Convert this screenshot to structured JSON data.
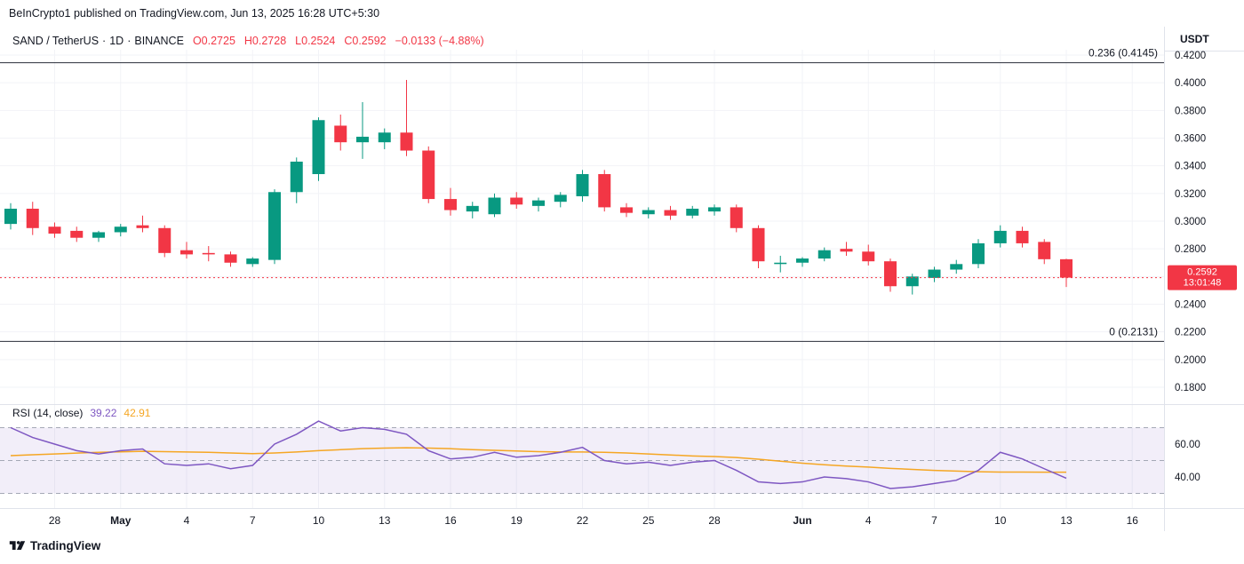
{
  "header": {
    "published_line": "BeInCrypto1 published on TradingView.com, Jun 13, 2025 16:28 UTC+5:30"
  },
  "legend": {
    "symbol": "SAND / TetherUS",
    "separator": "·",
    "interval": "1D",
    "exchange": "BINANCE",
    "open": "O0.2725",
    "high": "H0.2728",
    "low": "L0.2524",
    "close": "C0.2592",
    "change": "−0.0133 (−4.88%)"
  },
  "rsi_legend": {
    "label": "RSI (14, close)",
    "rsi_value": "39.22",
    "ma_value": "42.91"
  },
  "price_axis": {
    "currency": "USDT",
    "labels": [
      "0.4200",
      "0.4000",
      "0.3800",
      "0.3600",
      "0.3400",
      "0.3200",
      "0.3000",
      "0.2800",
      "0.2600",
      "0.2400",
      "0.2200",
      "0.2000",
      "0.1800"
    ],
    "badge": {
      "price": "0.2592",
      "countdown": "13:01:48"
    }
  },
  "rsi_axis": {
    "labels": [
      "60.00",
      "40.00"
    ]
  },
  "levels": [
    {
      "label": "0.236 (0.4145)",
      "value": 0.4145
    },
    {
      "label": "0 (0.2131)",
      "value": 0.2131
    }
  ],
  "current_price_line": {
    "value": 0.2592
  },
  "time_axis": [
    {
      "label": "28",
      "i": 2
    },
    {
      "label": "May",
      "i": 5,
      "bold": true
    },
    {
      "label": "4",
      "i": 8
    },
    {
      "label": "7",
      "i": 11
    },
    {
      "label": "10",
      "i": 14
    },
    {
      "label": "13",
      "i": 17
    },
    {
      "label": "16",
      "i": 20
    },
    {
      "label": "19",
      "i": 23
    },
    {
      "label": "22",
      "i": 26
    },
    {
      "label": "25",
      "i": 29
    },
    {
      "label": "28",
      "i": 32
    },
    {
      "label": "Jun",
      "i": 36,
      "bold": true
    },
    {
      "label": "4",
      "i": 39
    },
    {
      "label": "7",
      "i": 42
    },
    {
      "label": "10",
      "i": 45
    },
    {
      "label": "13",
      "i": 48
    },
    {
      "label": "16",
      "i": 51
    }
  ],
  "footer": {
    "brand": "TradingView"
  },
  "colors": {
    "up": "#089981",
    "down": "#f23645",
    "rsi": "#7e57c2",
    "rsi_ma": "#f5a623",
    "level_line": "#2a2e39",
    "text": "#131722",
    "grid": "#f2f3f7",
    "separator": "#e0e3eb",
    "band_fill": "rgba(126,87,194,0.10)",
    "dashed": "#a5a8b6",
    "badge_text": "#ffffff"
  },
  "chart_data": {
    "type": "candlestick",
    "title": "SAND / TetherUS · 1D · BINANCE",
    "ylabel": "USDT",
    "ylim": [
      0.18,
      0.42
    ],
    "grid": true,
    "candles": [
      [
        0.298,
        0.313,
        0.294,
        0.309
      ],
      [
        0.309,
        0.314,
        0.29,
        0.295
      ],
      [
        0.296,
        0.299,
        0.288,
        0.291
      ],
      [
        0.293,
        0.296,
        0.285,
        0.288
      ],
      [
        0.288,
        0.293,
        0.285,
        0.292
      ],
      [
        0.292,
        0.298,
        0.289,
        0.296
      ],
      [
        0.297,
        0.304,
        0.292,
        0.295
      ],
      [
        0.295,
        0.297,
        0.274,
        0.277
      ],
      [
        0.279,
        0.285,
        0.273,
        0.276
      ],
      [
        0.277,
        0.282,
        0.271,
        0.276
      ],
      [
        0.276,
        0.278,
        0.267,
        0.27
      ],
      [
        0.269,
        0.274,
        0.267,
        0.273
      ],
      [
        0.272,
        0.323,
        0.269,
        0.321
      ],
      [
        0.321,
        0.346,
        0.313,
        0.343
      ],
      [
        0.334,
        0.375,
        0.329,
        0.373
      ],
      [
        0.369,
        0.377,
        0.351,
        0.357
      ],
      [
        0.357,
        0.386,
        0.345,
        0.361
      ],
      [
        0.357,
        0.367,
        0.352,
        0.364
      ],
      [
        0.364,
        0.402,
        0.347,
        0.351
      ],
      [
        0.351,
        0.354,
        0.313,
        0.316
      ],
      [
        0.316,
        0.324,
        0.304,
        0.308
      ],
      [
        0.307,
        0.314,
        0.302,
        0.311
      ],
      [
        0.305,
        0.32,
        0.303,
        0.317
      ],
      [
        0.317,
        0.321,
        0.309,
        0.312
      ],
      [
        0.311,
        0.317,
        0.307,
        0.315
      ],
      [
        0.314,
        0.321,
        0.31,
        0.319
      ],
      [
        0.318,
        0.337,
        0.314,
        0.334
      ],
      [
        0.334,
        0.337,
        0.307,
        0.31
      ],
      [
        0.31,
        0.313,
        0.303,
        0.306
      ],
      [
        0.305,
        0.31,
        0.302,
        0.308
      ],
      [
        0.308,
        0.311,
        0.301,
        0.304
      ],
      [
        0.304,
        0.311,
        0.302,
        0.309
      ],
      [
        0.307,
        0.312,
        0.304,
        0.31
      ],
      [
        0.31,
        0.312,
        0.292,
        0.295
      ],
      [
        0.295,
        0.297,
        0.266,
        0.271
      ],
      [
        0.269,
        0.275,
        0.263,
        0.27
      ],
      [
        0.27,
        0.274,
        0.267,
        0.273
      ],
      [
        0.273,
        0.281,
        0.271,
        0.279
      ],
      [
        0.28,
        0.285,
        0.275,
        0.278
      ],
      [
        0.278,
        0.283,
        0.268,
        0.271
      ],
      [
        0.271,
        0.273,
        0.249,
        0.253
      ],
      [
        0.253,
        0.262,
        0.247,
        0.26
      ],
      [
        0.259,
        0.267,
        0.256,
        0.265
      ],
      [
        0.265,
        0.272,
        0.262,
        0.269
      ],
      [
        0.269,
        0.287,
        0.266,
        0.284
      ],
      [
        0.284,
        0.297,
        0.281,
        0.293
      ],
      [
        0.293,
        0.296,
        0.281,
        0.284
      ],
      [
        0.285,
        0.287,
        0.269,
        0.2725
      ],
      [
        0.2725,
        0.2728,
        0.2524,
        0.2592
      ]
    ],
    "indicators": {
      "rsi": {
        "period": 14,
        "source": "close",
        "last": 39.22,
        "ma_last": 42.91,
        "guides": [
          70,
          50,
          30
        ],
        "values": [
          70,
          64,
          60,
          56,
          54,
          56,
          57,
          48,
          47,
          48,
          45,
          47,
          60,
          66,
          74,
          68,
          70,
          69,
          66,
          56,
          51,
          52,
          55,
          52,
          53,
          55,
          58,
          50,
          48,
          49,
          47,
          49,
          50,
          44,
          37,
          36,
          37,
          40,
          39,
          37,
          33,
          34,
          36,
          38,
          44,
          55,
          51,
          45,
          39.22
        ],
        "ma_values": [
          53,
          53.5,
          54,
          54.5,
          55,
          55.3,
          55.6,
          55.4,
          55.2,
          55,
          54.6,
          54.2,
          54.6,
          55.2,
          56,
          56.6,
          57.2,
          57.6,
          57.8,
          57.6,
          57.2,
          56.6,
          56.2,
          55.8,
          55.4,
          55.2,
          55.2,
          55,
          54.6,
          54,
          53.4,
          52.8,
          52.4,
          51.8,
          50.8,
          49.6,
          48.4,
          47.4,
          46.6,
          46,
          45.2,
          44.6,
          44,
          43.6,
          43.2,
          43,
          42.95,
          42.92,
          42.91
        ]
      }
    },
    "fib_levels": [
      {
        "label": "0.236 (0.4145)",
        "value": 0.4145
      },
      {
        "label": "0 (0.2131)",
        "value": 0.2131
      }
    ]
  }
}
